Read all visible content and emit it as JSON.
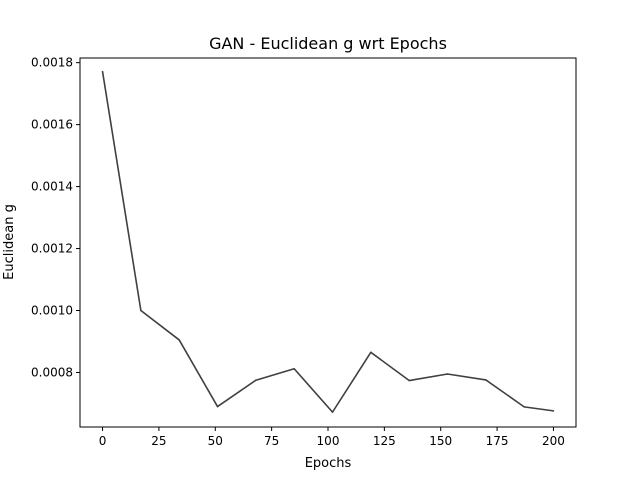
{
  "chart_data": {
    "type": "line",
    "title": "GAN - Euclidean g wrt Epochs",
    "xlabel": "Epochs",
    "ylabel": "Euclidean g",
    "xlim": [
      -10,
      210
    ],
    "ylim": [
      0.000624,
      0.001815
    ],
    "xticks": [
      0,
      25,
      50,
      75,
      100,
      125,
      150,
      175,
      200
    ],
    "xtick_labels": [
      "0",
      "25",
      "50",
      "75",
      "100",
      "125",
      "150",
      "175",
      "200"
    ],
    "yticks": [
      0.0008,
      0.001,
      0.0012,
      0.0014,
      0.0016,
      0.0018
    ],
    "ytick_labels": [
      "0.0008",
      "0.0010",
      "0.0012",
      "0.0014",
      "0.0016",
      "0.0018"
    ],
    "grid": false,
    "series": [
      {
        "color": "#404040",
        "x": [
          0,
          17,
          34,
          51,
          68,
          85,
          102,
          119,
          136,
          153,
          170,
          187,
          200
        ],
        "y": [
          0.001771,
          0.001,
          0.000905,
          0.00069,
          0.000775,
          0.000812,
          0.000672,
          0.000865,
          0.000774,
          0.000795,
          0.000776,
          0.000689,
          0.000676
        ]
      }
    ]
  }
}
